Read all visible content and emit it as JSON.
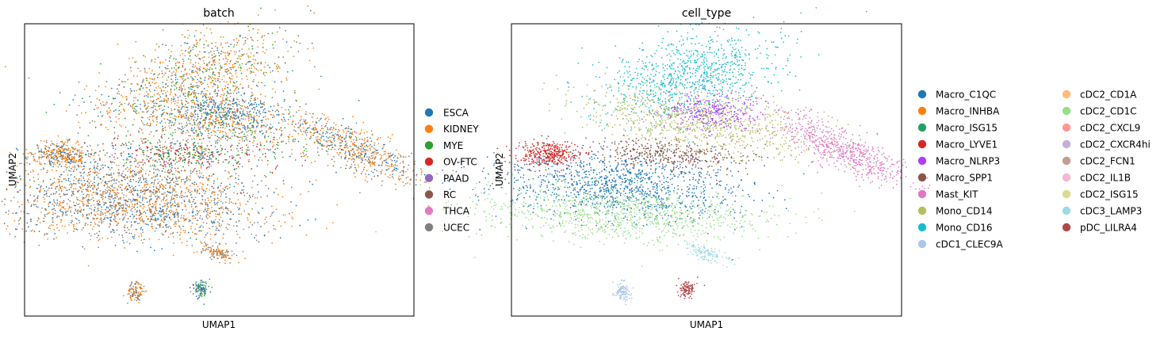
{
  "chart_data": [
    {
      "type": "scatter",
      "title": "batch",
      "xlabel": "UMAP1",
      "ylabel": "UMAP2",
      "grid": false,
      "ticks": "none",
      "legend_placement": "right",
      "legend": [
        {
          "name": "ESCA",
          "color": "#1f77b4"
        },
        {
          "name": "KIDNEY",
          "color": "#ff7f0e"
        },
        {
          "name": "MYE",
          "color": "#2ca02c"
        },
        {
          "name": "OV-FTC",
          "color": "#d62728"
        },
        {
          "name": "PAAD",
          "color": "#9467bd"
        },
        {
          "name": "RC",
          "color": "#8c564b"
        },
        {
          "name": "THCA",
          "color": "#e377c2"
        },
        {
          "name": "UCEC",
          "color": "#7f7f7f"
        }
      ]
    },
    {
      "type": "scatter",
      "title": "cell_type",
      "xlabel": "UMAP1",
      "ylabel": "UMAP2",
      "grid": false,
      "ticks": "none",
      "legend_placement": "right",
      "legend": [
        {
          "name": "Macro_C1QC",
          "color": "#1f77b4"
        },
        {
          "name": "Macro_INHBA",
          "color": "#ff7f0e"
        },
        {
          "name": "Macro_ISG15",
          "color": "#279e68"
        },
        {
          "name": "Macro_LYVE1",
          "color": "#d62728"
        },
        {
          "name": "Macro_NLRP3",
          "color": "#aa40fc"
        },
        {
          "name": "Macro_SPP1",
          "color": "#8c564b"
        },
        {
          "name": "Mast_KIT",
          "color": "#e377c2"
        },
        {
          "name": "Mono_CD14",
          "color": "#b5bd61"
        },
        {
          "name": "Mono_CD16",
          "color": "#17becf"
        },
        {
          "name": "cDC1_CLEC9A",
          "color": "#aec7e8"
        },
        {
          "name": "cDC2_CD1A",
          "color": "#ffbb78"
        },
        {
          "name": "cDC2_CD1C",
          "color": "#98df8a"
        },
        {
          "name": "cDC2_CXCL9",
          "color": "#ff9896"
        },
        {
          "name": "cDC2_CXCR4hi",
          "color": "#c5b0d5"
        },
        {
          "name": "cDC2_FCN1",
          "color": "#c49c94"
        },
        {
          "name": "cDC2_IL1B",
          "color": "#f7b6d2"
        },
        {
          "name": "cDC2_ISG15",
          "color": "#dbdb8d"
        },
        {
          "name": "cDC3_LAMP3",
          "color": "#9edae5"
        },
        {
          "name": "pDC_LILRA4",
          "color": "#ad494a"
        }
      ]
    }
  ]
}
